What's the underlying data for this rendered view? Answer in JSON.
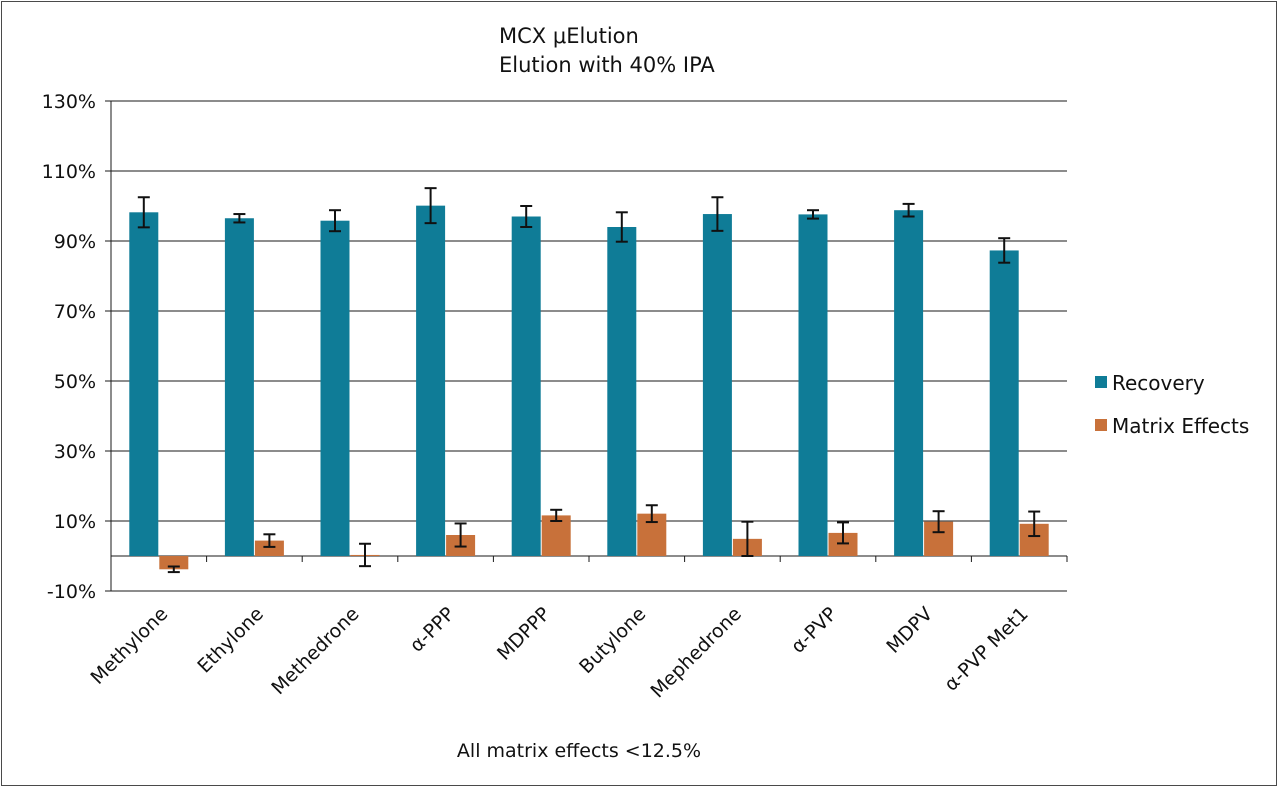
{
  "chart_data": {
    "type": "bar",
    "title": "MCX μElution",
    "subtitle": "Elution with 40% IPA",
    "annotation": "All matrix effects <12.5%",
    "xlabel": "",
    "ylabel": "",
    "ylim": [
      -10,
      130
    ],
    "yticks": [
      -10,
      10,
      30,
      50,
      70,
      90,
      110,
      130
    ],
    "ytick_labels": [
      "-10%",
      "10%",
      "30%",
      "50%",
      "70%",
      "90%",
      "110%",
      "130%"
    ],
    "grid": true,
    "legend_position": "right",
    "categories": [
      "Methylone",
      "Ethylone",
      "Methedrone",
      "α-PPP",
      "MDPPP",
      "Butylone",
      "Mephedrone",
      "α-PVP",
      "MDPV",
      "α-PVP Met1"
    ],
    "series": [
      {
        "name": "Recovery",
        "color": "#0f7c97",
        "values": [
          98.2,
          96.5,
          95.8,
          100.1,
          97.0,
          94.0,
          97.7,
          97.6,
          98.8,
          87.3
        ],
        "errors": [
          4.3,
          1.2,
          3.0,
          5.0,
          3.0,
          4.2,
          4.8,
          1.2,
          1.8,
          3.5
        ]
      },
      {
        "name": "Matrix Effects",
        "color": "#c8713a",
        "values": [
          -3.8,
          4.4,
          0.3,
          6.0,
          11.6,
          12.1,
          4.9,
          6.6,
          9.8,
          9.2
        ],
        "errors": [
          0.8,
          1.8,
          3.2,
          3.3,
          1.6,
          2.4,
          4.9,
          3.0,
          3.0,
          3.5
        ]
      }
    ]
  }
}
